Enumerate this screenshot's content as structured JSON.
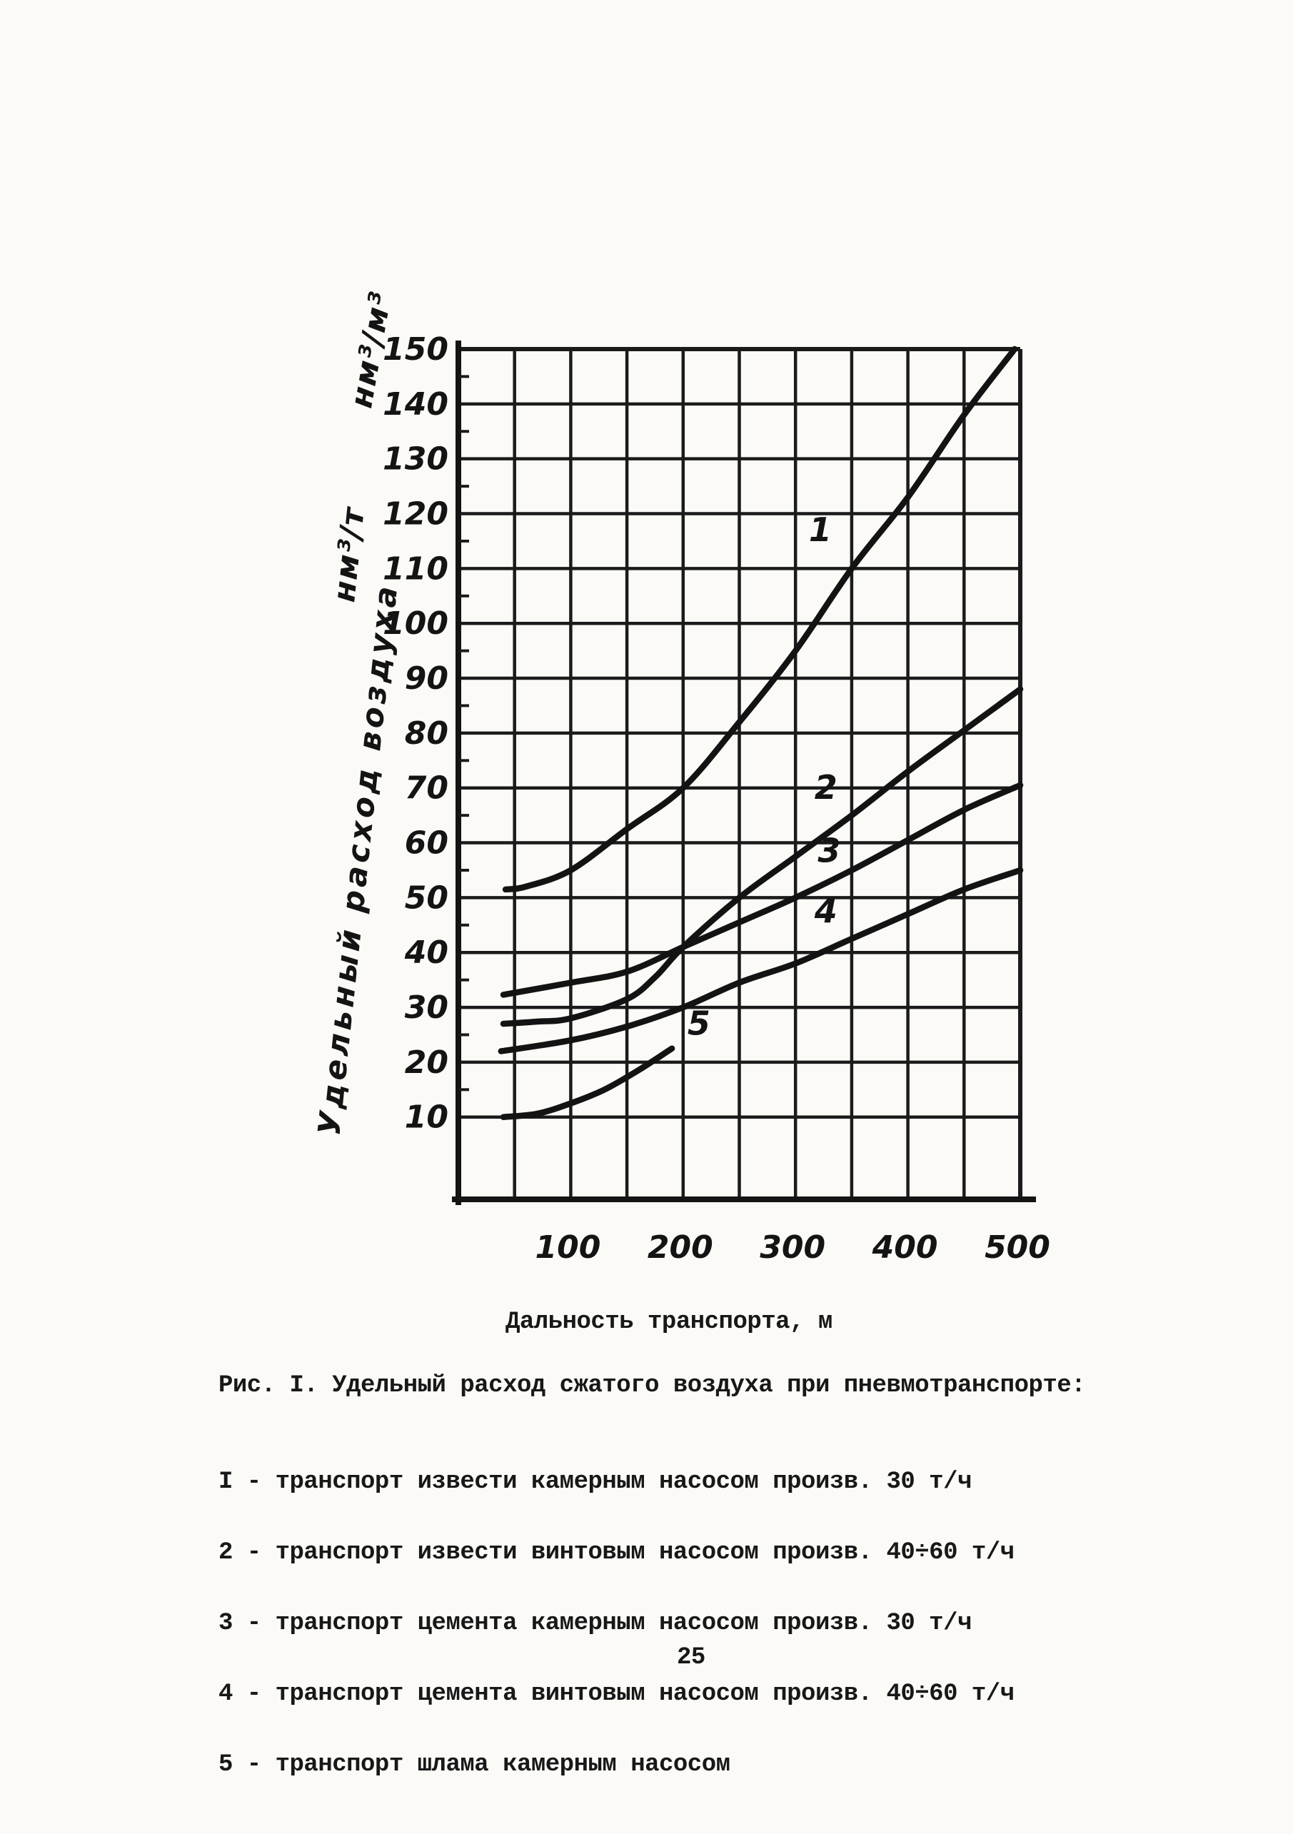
{
  "page": {
    "number": "25",
    "paper_color": "#fbfaf7",
    "ink_color": "#161616"
  },
  "figure": {
    "caption": "Рис. I. Удельный расход сжатого воздуха при пневмотранспорте:",
    "legend_lines": [
      "I - транспорт извести камерным насосом произв. 30 т/ч",
      "2 - транспорт извести винтовым насосом произв. 40÷60 т/ч",
      "3 - транспорт цемента камерным насосом произв. 30 т/ч",
      "4 - транспорт цемента винтовым насосом произв. 40÷60 т/ч",
      "5 - транспорт шлама камерным насосом"
    ]
  },
  "chart_data": {
    "type": "line",
    "title": "Удельный расход сжатого воздуха при пневмотранспорте",
    "xlabel": "Дальность транспорта, м",
    "ylabel": "Удельный расход воздуха",
    "y_unit_lower": "нм³/т",
    "y_unit_upper": "нм³/м³",
    "xlim": [
      0,
      500
    ],
    "ylim": [
      0,
      150
    ],
    "x_grid_step": 50,
    "y_grid_step": 10,
    "grid": true,
    "x_ticks": [
      100,
      200,
      300,
      400,
      500
    ],
    "y_ticks": [
      10,
      20,
      30,
      40,
      50,
      60,
      70,
      80,
      90,
      100,
      110,
      120,
      130,
      140,
      150
    ],
    "series": [
      {
        "name": "1",
        "legend": "транспорт извести камерным насосом произв. 30 т/ч",
        "label_at": [
          322,
          115
        ],
        "points": [
          [
            42,
            51.5
          ],
          [
            60,
            52
          ],
          [
            100,
            55
          ],
          [
            150,
            62.5
          ],
          [
            200,
            70
          ],
          [
            250,
            82
          ],
          [
            300,
            95
          ],
          [
            350,
            110
          ],
          [
            400,
            123
          ],
          [
            450,
            138
          ],
          [
            495,
            150
          ]
        ]
      },
      {
        "name": "2",
        "legend": "транспорт извести винтовым насосом произв. 40÷60 т/ч",
        "label_at": [
          327,
          68
        ],
        "points": [
          [
            40,
            27
          ],
          [
            70,
            27.4
          ],
          [
            100,
            28
          ],
          [
            150,
            31.5
          ],
          [
            175,
            35.5
          ],
          [
            200,
            41
          ],
          [
            250,
            50
          ],
          [
            300,
            57.5
          ],
          [
            350,
            65
          ],
          [
            400,
            73
          ],
          [
            450,
            80.5
          ],
          [
            500,
            88
          ]
        ]
      },
      {
        "name": "3",
        "legend": "транспорт цемента камерным насосом произв. 30 т/ч",
        "label_at": [
          330,
          56.5
        ],
        "points": [
          [
            40,
            32.3
          ],
          [
            100,
            34.5
          ],
          [
            150,
            36.5
          ],
          [
            200,
            41
          ],
          [
            250,
            45.5
          ],
          [
            300,
            50
          ],
          [
            350,
            55
          ],
          [
            400,
            60.5
          ],
          [
            450,
            66
          ],
          [
            500,
            70.5
          ]
        ]
      },
      {
        "name": "4",
        "legend": "транспорт цемента винтовым насосом произв. 40÷60 т/ч",
        "label_at": [
          327,
          45.5
        ],
        "points": [
          [
            38,
            22
          ],
          [
            100,
            24
          ],
          [
            150,
            26.5
          ],
          [
            200,
            30
          ],
          [
            250,
            34.5
          ],
          [
            300,
            38
          ],
          [
            350,
            42.5
          ],
          [
            400,
            47
          ],
          [
            450,
            51.5
          ],
          [
            500,
            55
          ]
        ]
      },
      {
        "name": "5",
        "legend": "транспорт шлама камерным насосом",
        "label_at": [
          214,
          25
        ],
        "points": [
          [
            40,
            10
          ],
          [
            70,
            10.6
          ],
          [
            100,
            12.5
          ],
          [
            130,
            15
          ],
          [
            160,
            18.5
          ],
          [
            190,
            22.5
          ]
        ]
      }
    ]
  }
}
